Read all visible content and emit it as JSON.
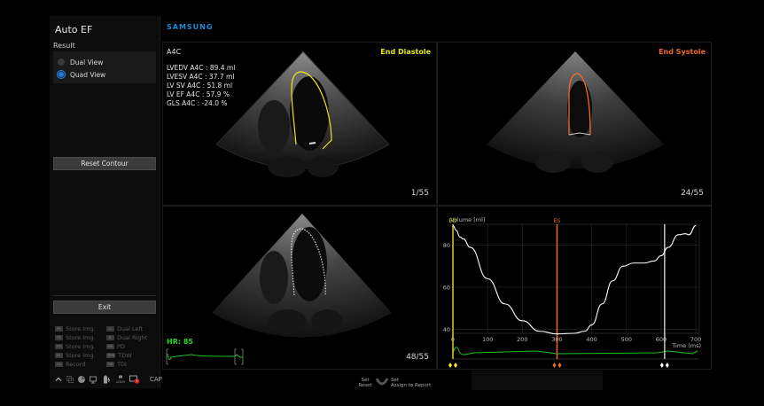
{
  "left_panel": {
    "title": "Auto EF",
    "result_label": "Result",
    "view_options": [
      {
        "label": "Dual View",
        "selected": false
      },
      {
        "label": "Quad View",
        "selected": true
      }
    ],
    "reset_contour_label": "Reset Contour",
    "exit_label": "Exit"
  },
  "shortcuts": {
    "left": [
      {
        "key": "P1",
        "label": "Store Img."
      },
      {
        "key": "P2",
        "label": "Store Img."
      },
      {
        "key": "P3",
        "label": "Store Img."
      },
      {
        "key": "U1",
        "label": "Store Img."
      },
      {
        "key": "U2",
        "label": "Record"
      }
    ],
    "right": [
      {
        "key": "L",
        "label": "Dual Left"
      },
      {
        "key": "R",
        "label": "Dual Right"
      },
      {
        "key": "PD",
        "label": "PD"
      },
      {
        "key": "TDW",
        "label": "TDW"
      },
      {
        "key": "TDI",
        "label": "TDI"
      }
    ]
  },
  "tray": {
    "icons": [
      "chevron-up-icon",
      "copy-icon",
      "disk-icon",
      "monitor-icon",
      "battery-icon",
      "adnr-icon",
      "alert-icon"
    ],
    "adnr_label": "ADNR",
    "caps_label": "CAP"
  },
  "brand": "SAMSUNG",
  "panes": {
    "ed": {
      "view": "A4C",
      "phase_label": "End Diastole",
      "phase_color": "#e8e81a",
      "frame": "1/55",
      "measurements": [
        "LVEDV A4C : 89.4 ml",
        "LVESV A4C : 37.7 ml",
        "LV SV A4C : 51.8 ml",
        "LV EF A4C : 57.9 %",
        "GLS A4C : -24.0 %"
      ]
    },
    "es": {
      "phase_label": "End Systole",
      "phase_color": "#f06a28",
      "frame": "24/55"
    },
    "live": {
      "hr_label": "HR: 85",
      "frame": "48/55"
    }
  },
  "chart_data": {
    "type": "line",
    "title": "",
    "ylabel": "Volume [ml]",
    "xlabel": "Time (ms)",
    "x_ticks": [
      0,
      100,
      200,
      300,
      400,
      500,
      600,
      700
    ],
    "y_ticks": [
      40,
      60,
      80
    ],
    "xlim": [
      0,
      710
    ],
    "ylim": [
      38,
      90
    ],
    "grid": true,
    "markers": [
      {
        "label": "ED",
        "x": 0,
        "color": "#c8c81a"
      },
      {
        "label": "ES",
        "x": 300,
        "color": "#e0652a"
      },
      {
        "label": "",
        "x": 610,
        "color": "#bbbbbb"
      }
    ],
    "series": [
      {
        "name": "Volume",
        "color": "#ffffff",
        "x": [
          0,
          10,
          20,
          30,
          50,
          100,
          150,
          200,
          250,
          300,
          350,
          380,
          400,
          430,
          460,
          490,
          520,
          550,
          580,
          600,
          620,
          650,
          670,
          680,
          700
        ],
        "y": [
          89.4,
          87,
          84,
          83,
          79,
          64,
          52,
          44,
          39,
          37.7,
          38,
          39,
          42,
          52,
          63,
          70,
          71.5,
          71.5,
          72.5,
          75,
          79,
          85,
          85.5,
          85,
          89.4
        ]
      }
    ]
  },
  "bottom": {
    "set_reset": "Set\nReset",
    "set_assign": "Set\nAssign to Report"
  }
}
